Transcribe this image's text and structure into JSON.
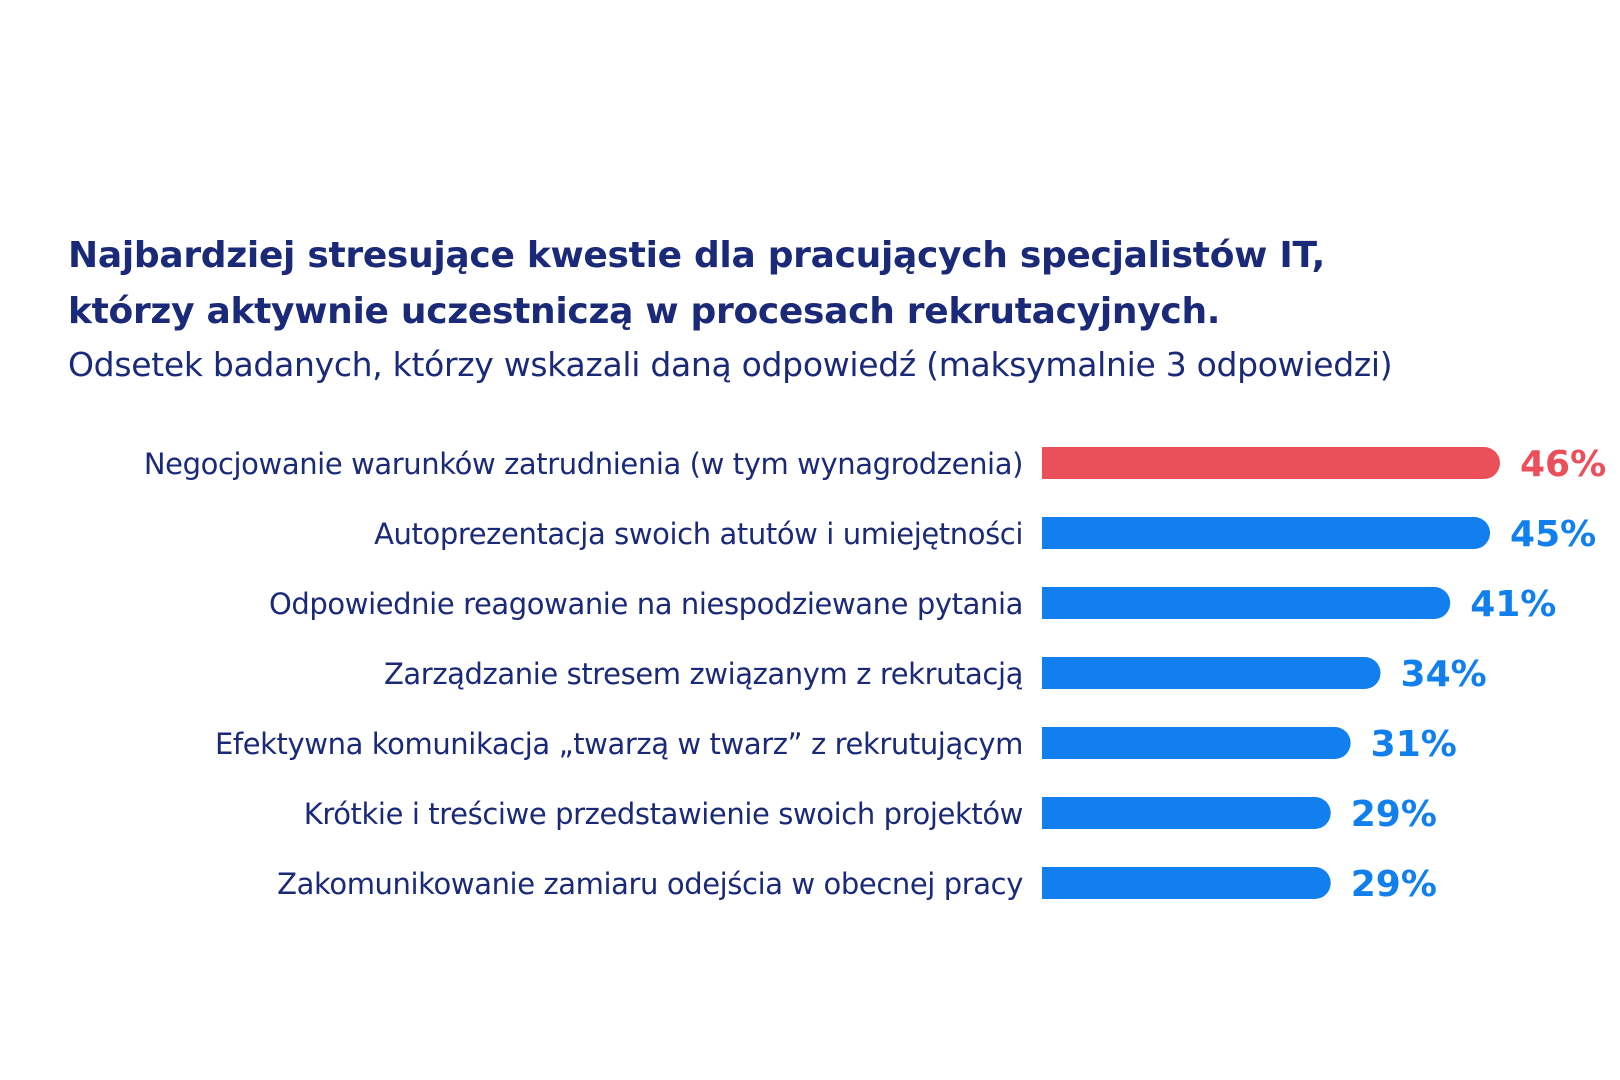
{
  "chart_data": {
    "type": "bar",
    "orientation": "horizontal",
    "title": [
      "Najbardziej stresujące kwestie dla pracujących specjalistów IT,",
      "którzy aktywnie uczestniczą w procesach rekrutacyjnych."
    ],
    "subtitle": "Odsetek badanych, którzy wskazali daną odpowiedź (maksymalnie 3 odpowiedzi)",
    "categories": [
      "Negocjowanie warunków zatrudnienia (w tym wynagrodzenia)",
      "Autoprezentacja swoich atutów i umiejętności",
      "Odpowiednie reagowanie na niespodziewane pytania",
      "Zarządzanie stresem związanym z rekrutacją",
      "Efektywna komunikacja „twarzą w twarz” z rekrutującym",
      "Krótkie i treściwe przedstawienie swoich projektów",
      "Zakomunikowanie zamiaru odejścia w obecnej pracy"
    ],
    "values": [
      46,
      45,
      41,
      34,
      31,
      29,
      29
    ],
    "value_labels": [
      "46%",
      "45%",
      "41%",
      "34%",
      "31%",
      "29%",
      "29%"
    ],
    "unit": "%",
    "highlight_index": 0,
    "xlim": [
      0,
      46
    ],
    "grid": false,
    "legend": "none",
    "colors": {
      "highlight": "#eb4f5a",
      "bar": "#1180ee",
      "label_text": "#1b2a78",
      "title_text": "#1b2a78"
    }
  }
}
